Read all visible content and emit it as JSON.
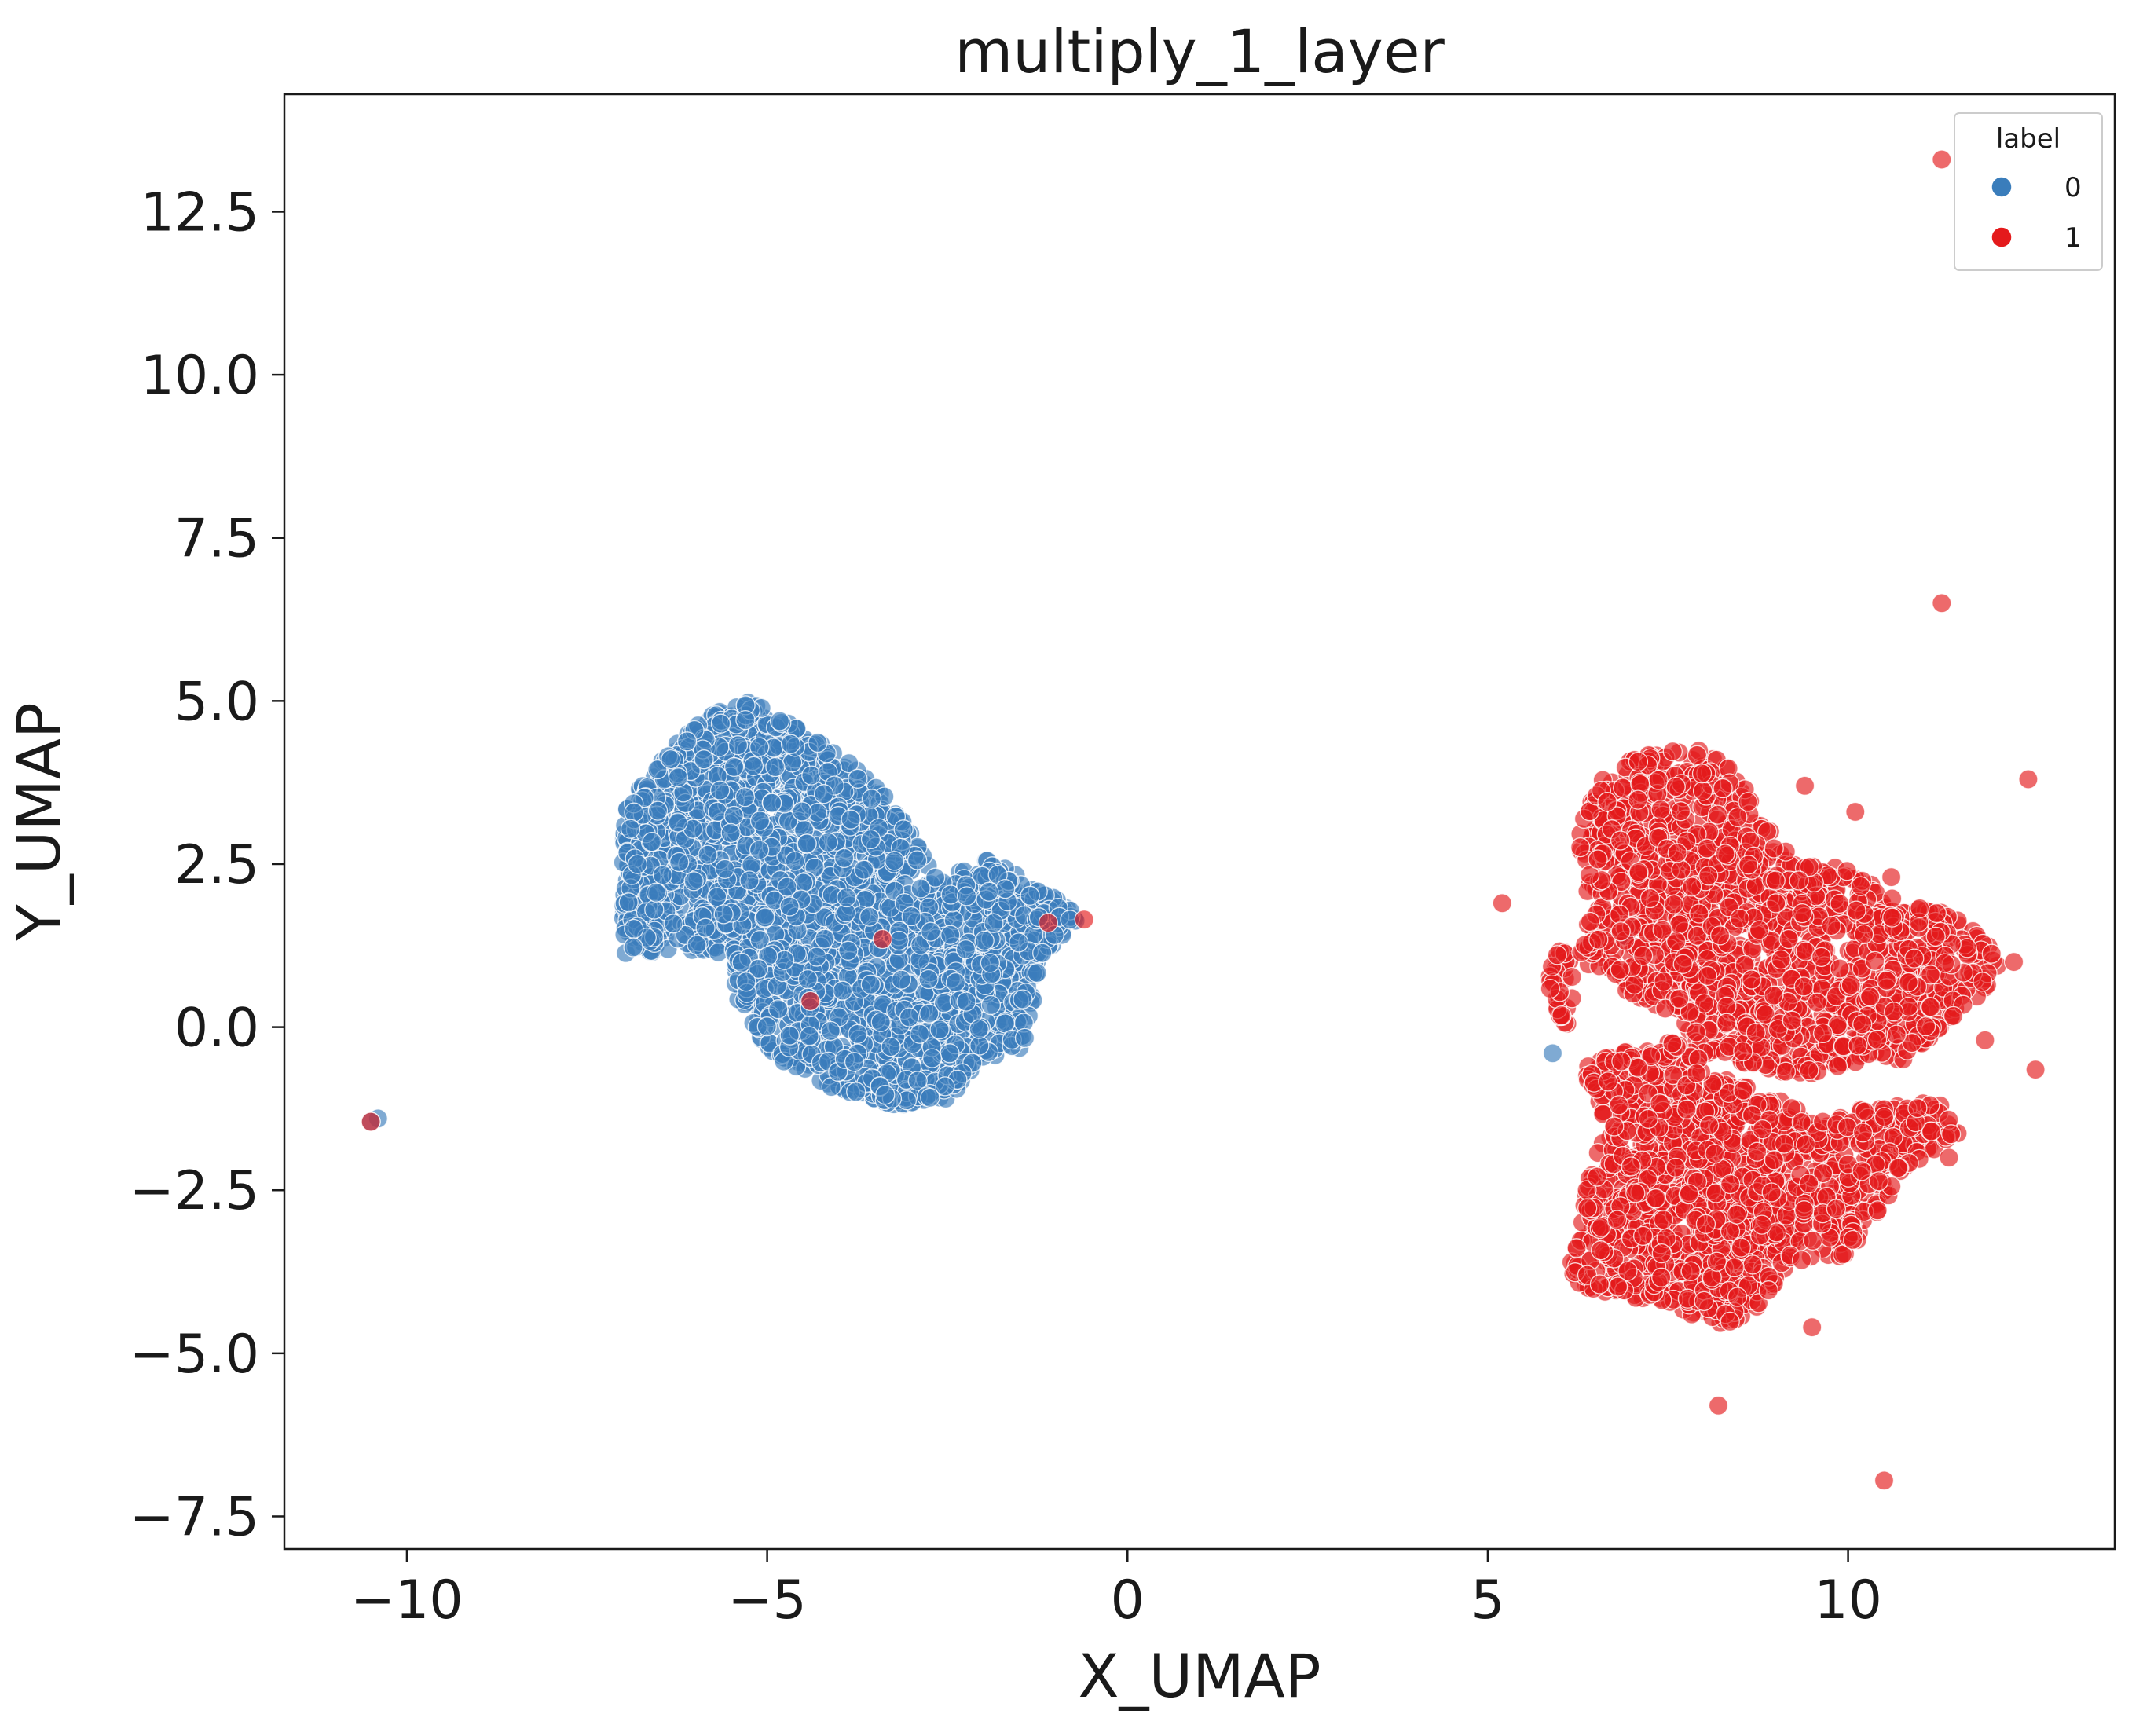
{
  "chart_data": {
    "type": "scatter",
    "title": "multiply_1_layer",
    "xlabel": "X_UMAP",
    "ylabel": "Y_UMAP",
    "xlim": [
      -11.7,
      13.7
    ],
    "ylim": [
      -8.0,
      14.3
    ],
    "xticks": [
      -10,
      -5,
      0,
      5,
      10
    ],
    "xtick_labels": [
      "−10",
      "−5",
      "0",
      "5",
      "10"
    ],
    "yticks": [
      -7.5,
      -5.0,
      -2.5,
      0.0,
      2.5,
      5.0,
      7.5,
      10.0,
      12.5
    ],
    "ytick_labels": [
      "−7.5",
      "−5.0",
      "−2.5",
      "0.0",
      "2.5",
      "5.0",
      "7.5",
      "10.0",
      "12.5"
    ],
    "grid": false,
    "legend": {
      "title": "label",
      "position": "top-right"
    },
    "series": [
      {
        "name": "0",
        "color": "#3a7dbb",
        "clusters": [
          {
            "shape": "polygon",
            "count": 2600,
            "polygon": [
              [
                -7.0,
                1.1
              ],
              [
                -7.0,
                3.3
              ],
              [
                -6.5,
                4.1
              ],
              [
                -5.8,
                4.8
              ],
              [
                -5.2,
                5.0
              ],
              [
                -4.6,
                4.6
              ],
              [
                -4.0,
                4.2
              ],
              [
                -3.3,
                3.5
              ],
              [
                -2.6,
                2.2
              ],
              [
                -2.0,
                2.6
              ],
              [
                -1.4,
                2.3
              ],
              [
                -0.6,
                1.7
              ],
              [
                -1.2,
                1.0
              ],
              [
                -1.3,
                0.3
              ],
              [
                -1.4,
                -0.3
              ],
              [
                -2.2,
                -0.7
              ],
              [
                -2.4,
                -1.1
              ],
              [
                -3.2,
                -1.2
              ],
              [
                -4.0,
                -1.0
              ],
              [
                -5.0,
                -0.4
              ],
              [
                -5.4,
                0.4
              ],
              [
                -5.5,
                1.1
              ],
              [
                -6.2,
                1.2
              ]
            ]
          }
        ],
        "points": [
          [
            -10.4,
            -1.4
          ],
          [
            -10.5,
            -1.45
          ],
          [
            6.9,
            1.4
          ],
          [
            5.9,
            -0.4
          ]
        ]
      },
      {
        "name": "1",
        "color": "#e41a1c",
        "clusters": [
          {
            "shape": "polygon",
            "count": 1500,
            "polygon": [
              [
                6.2,
                3.0
              ],
              [
                6.6,
                3.8
              ],
              [
                7.0,
                4.1
              ],
              [
                7.6,
                4.3
              ],
              [
                8.2,
                4.2
              ],
              [
                8.6,
                3.6
              ],
              [
                9.2,
                2.6
              ],
              [
                10.0,
                2.4
              ],
              [
                10.6,
                2.0
              ],
              [
                11.2,
                1.8
              ],
              [
                11.8,
                1.5
              ],
              [
                12.2,
                1.0
              ],
              [
                11.6,
                0.2
              ],
              [
                10.8,
                -0.5
              ],
              [
                10.2,
                -0.5
              ],
              [
                9.4,
                -0.8
              ],
              [
                8.6,
                -0.6
              ],
              [
                8.0,
                -0.4
              ],
              [
                7.6,
                0.2
              ],
              [
                7.0,
                0.5
              ],
              [
                6.5,
                0.9
              ],
              [
                6.0,
                1.2
              ],
              [
                5.8,
                0.8
              ],
              [
                6.1,
                -0.2
              ],
              [
                6.4,
                1.9
              ]
            ]
          },
          {
            "shape": "polygon",
            "count": 1300,
            "polygon": [
              [
                6.3,
                -0.6
              ],
              [
                6.8,
                -0.4
              ],
              [
                7.6,
                -0.2
              ],
              [
                8.2,
                -0.7
              ],
              [
                8.8,
                -1.0
              ],
              [
                9.6,
                -1.4
              ],
              [
                10.4,
                -1.2
              ],
              [
                11.2,
                -1.1
              ],
              [
                11.6,
                -1.6
              ],
              [
                10.8,
                -2.2
              ],
              [
                10.0,
                -3.5
              ],
              [
                9.2,
                -3.6
              ],
              [
                8.8,
                -4.3
              ],
              [
                8.2,
                -4.6
              ],
              [
                7.4,
                -4.2
              ],
              [
                6.6,
                -4.1
              ],
              [
                6.1,
                -3.9
              ],
              [
                6.3,
                -2.8
              ],
              [
                6.6,
                -1.5
              ]
            ]
          }
        ],
        "points": [
          [
            11.3,
            13.3
          ],
          [
            11.3,
            6.5
          ],
          [
            5.2,
            1.9
          ],
          [
            8.2,
            -5.8
          ],
          [
            10.5,
            -6.95
          ],
          [
            12.5,
            3.8
          ],
          [
            12.6,
            -0.65
          ],
          [
            -0.6,
            1.65
          ],
          [
            -3.4,
            1.35
          ],
          [
            -4.4,
            0.4
          ],
          [
            -1.1,
            1.6
          ],
          [
            -10.5,
            -1.45
          ],
          [
            10.1,
            3.3
          ],
          [
            9.4,
            3.7
          ],
          [
            12.3,
            1.0
          ],
          [
            11.4,
            -2.0
          ],
          [
            9.5,
            -4.6
          ],
          [
            8.0,
            -4.2
          ],
          [
            10.6,
            2.3
          ],
          [
            11.9,
            -0.2
          ]
        ]
      }
    ]
  }
}
